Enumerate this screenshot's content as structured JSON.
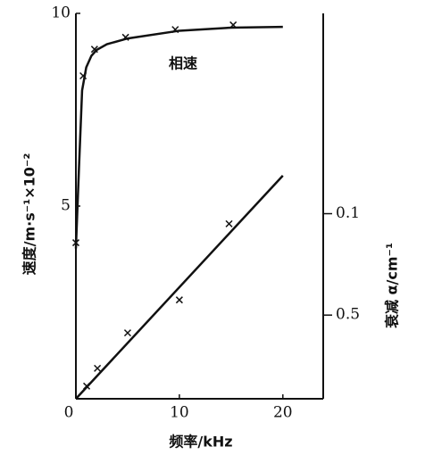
{
  "chart_data": {
    "type": "line",
    "xlabel": "频率/kHz",
    "ylabel": "速度/m·s⁻¹×10⁻²",
    "y2label": "衰减 α/cm⁻¹",
    "annotation": "相速",
    "xlim": [
      0,
      23.9
    ],
    "xticks": [
      0,
      10,
      20
    ],
    "ylim": [
      0,
      10
    ],
    "yticks": [
      5,
      10
    ],
    "y2lim": [
      0.83,
      -0.69
    ],
    "y2ticks": [
      0.1,
      0.5
    ],
    "color": "#111111",
    "series": [
      {
        "style": "line",
        "x": [
          0,
          0.3,
          0.6,
          1,
          1.5,
          2,
          3,
          5,
          10,
          15,
          20
        ],
        "values": [
          3.9,
          6,
          8.0,
          8.6,
          8.9,
          9.05,
          9.2,
          9.35,
          9.55,
          9.63,
          9.65
        ]
      },
      {
        "style": "cross",
        "x": [
          0,
          0.7,
          1.8,
          4.8,
          9.6,
          15.2
        ],
        "values": [
          4.05,
          8.38,
          9.07,
          9.38,
          9.58,
          9.7
        ]
      },
      {
        "style": "line",
        "axis": "y2",
        "x": [
          0,
          20
        ],
        "values": [
          0.83,
          -0.05
        ]
      },
      {
        "style": "cross",
        "axis": "y2",
        "x": [
          1.04,
          2.08,
          5.0,
          10,
          14.8
        ],
        "values": [
          0.78,
          0.71,
          0.57,
          0.44,
          0.14
        ]
      }
    ]
  }
}
